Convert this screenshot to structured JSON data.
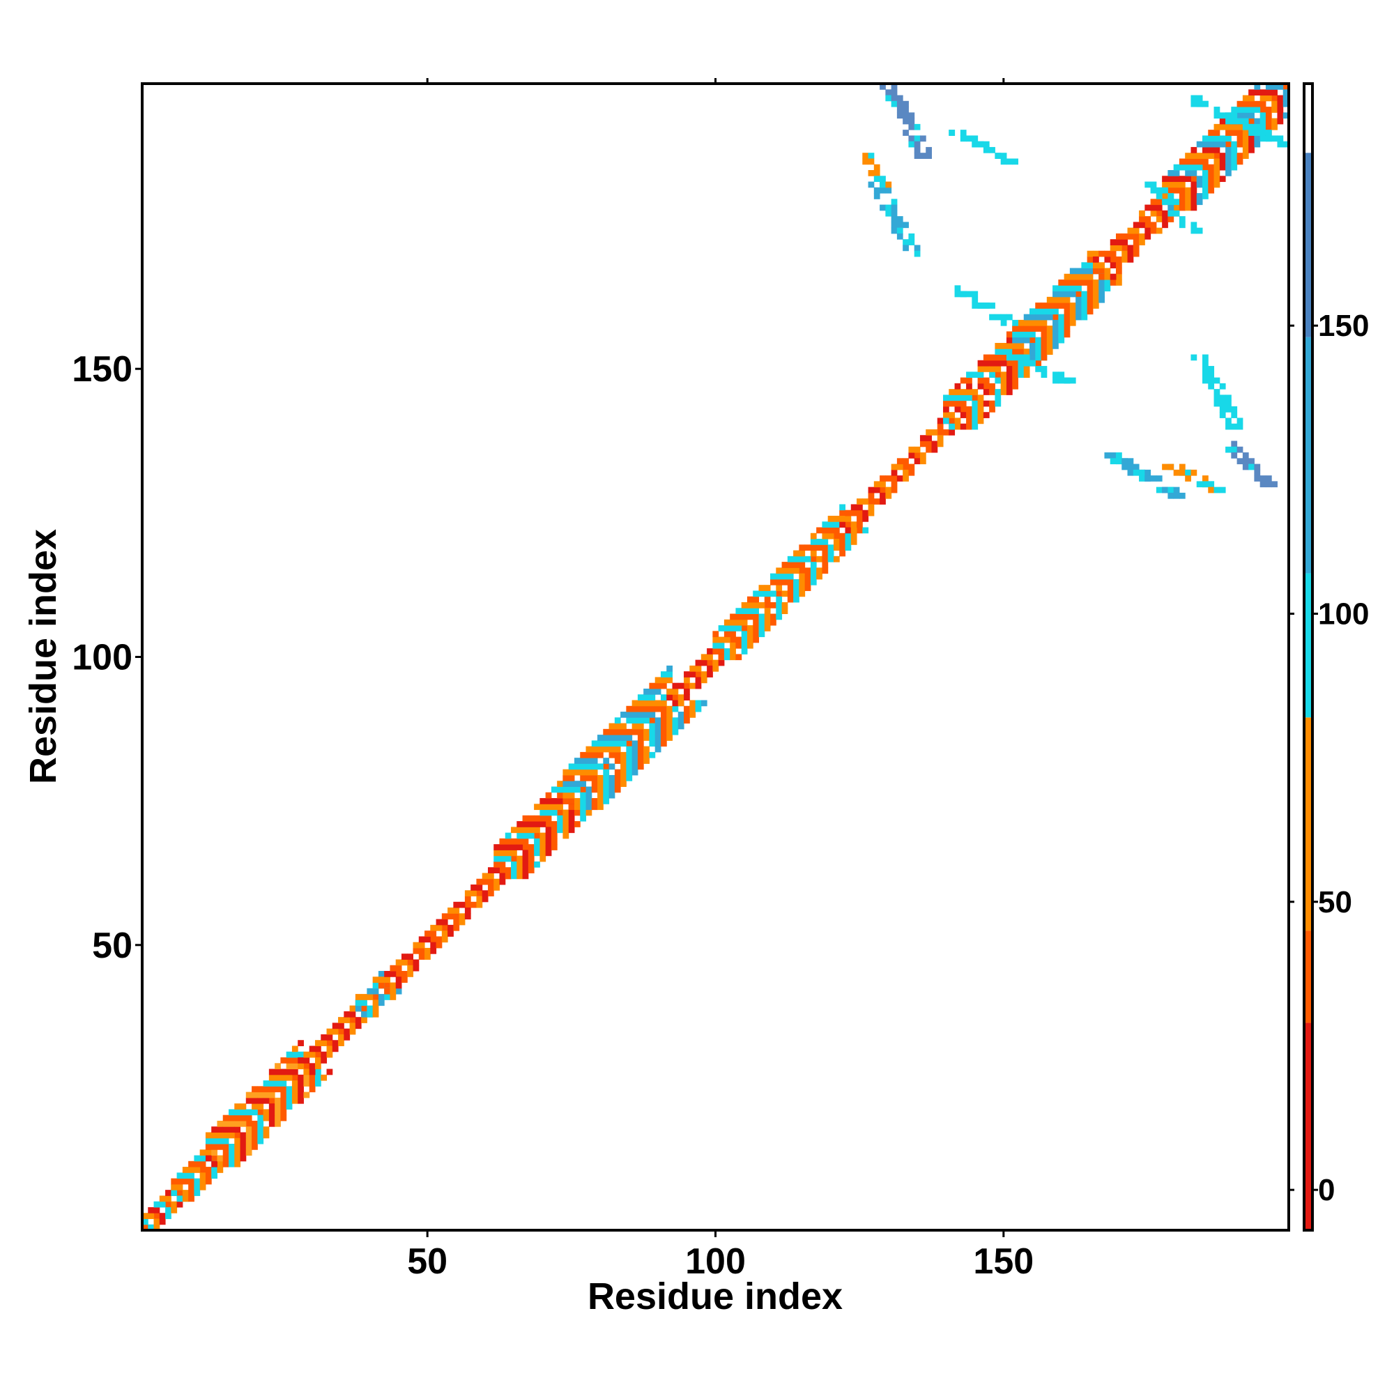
{
  "chart_data": {
    "type": "heatmap",
    "title": "",
    "xlabel": "Residue index",
    "ylabel": "Residue index",
    "xlim": [
      1,
      199
    ],
    "ylim": [
      1,
      199
    ],
    "x_ticks": [
      50,
      100,
      150
    ],
    "y_ticks": [
      50,
      100,
      150
    ],
    "grid": false,
    "symmetric": true,
    "colorbar": {
      "ticks": [
        0,
        50,
        100,
        150
      ],
      "range": [
        -7,
        192
      ],
      "bands": [
        {
          "from": -7,
          "to": 29,
          "color": "#e21a12"
        },
        {
          "from": 29,
          "to": 45,
          "color": "#ff5a00"
        },
        {
          "from": 45,
          "to": 82,
          "color": "#ff8c00"
        },
        {
          "from": 82,
          "to": 107,
          "color": "#18d8e8"
        },
        {
          "from": 107,
          "to": 148,
          "color": "#33a8d6"
        },
        {
          "from": 148,
          "to": 180,
          "color": "#4a82c0"
        },
        {
          "from": 180,
          "to": 192,
          "color": "#ffffff"
        }
      ]
    },
    "palette": {
      "red": "#e21a12",
      "orange_red": "#ff5a00",
      "orange": "#ff8c00",
      "light_orange": "#ffa020",
      "cyan": "#18d8e8",
      "light_blue": "#33a8d6",
      "steel_blue": "#5a88c2",
      "white": "#ffffff"
    },
    "diagonal_segments": [
      {
        "from": 1,
        "to": 6,
        "width": 2,
        "colors": [
          "orange",
          "red",
          "cyan"
        ]
      },
      {
        "from": 6,
        "to": 12,
        "width": 3,
        "colors": [
          "orange_red",
          "cyan",
          "orange"
        ]
      },
      {
        "from": 12,
        "to": 28,
        "width": 5,
        "colors": [
          "orange_red",
          "cyan",
          "orange",
          "red",
          "light_orange"
        ]
      },
      {
        "from": 28,
        "to": 38,
        "width": 2,
        "colors": [
          "red",
          "orange"
        ]
      },
      {
        "from": 38,
        "to": 42,
        "width": 3,
        "colors": [
          "light_blue",
          "cyan",
          "orange"
        ]
      },
      {
        "from": 42,
        "to": 62,
        "width": 2,
        "colors": [
          "red",
          "orange_red",
          "orange"
        ]
      },
      {
        "from": 62,
        "to": 74,
        "width": 5,
        "colors": [
          "orange_red",
          "cyan",
          "orange",
          "red"
        ]
      },
      {
        "from": 74,
        "to": 92,
        "width": 6,
        "colors": [
          "orange",
          "cyan",
          "light_blue",
          "orange_red"
        ]
      },
      {
        "from": 92,
        "to": 100,
        "width": 2,
        "colors": [
          "orange",
          "red"
        ]
      },
      {
        "from": 100,
        "to": 122,
        "width": 4,
        "colors": [
          "cyan",
          "orange",
          "orange_red"
        ]
      },
      {
        "from": 122,
        "to": 140,
        "width": 2,
        "colors": [
          "red",
          "orange",
          "orange_red"
        ]
      },
      {
        "from": 140,
        "to": 152,
        "width": 5,
        "colors": [
          "orange_red",
          "cyan",
          "orange",
          "red"
        ]
      },
      {
        "from": 152,
        "to": 166,
        "width": 5,
        "colors": [
          "cyan",
          "orange_red",
          "orange",
          "light_blue"
        ]
      },
      {
        "from": 166,
        "to": 178,
        "width": 3,
        "colors": [
          "orange",
          "red",
          "orange_red"
        ]
      },
      {
        "from": 178,
        "to": 199,
        "width": 5,
        "colors": [
          "cyan",
          "orange_red",
          "orange",
          "red",
          "light_blue"
        ]
      }
    ],
    "off_diagonal_patches": [
      {
        "x": [
          130,
          136
        ],
        "y": [
          187,
          199
        ],
        "color": "steel_blue"
      },
      {
        "x": [
          128,
          134
        ],
        "y": [
          170,
          182
        ],
        "color": "light_blue"
      },
      {
        "x": [
          127,
          129
        ],
        "y": [
          182,
          187
        ],
        "color": "orange"
      },
      {
        "x": [
          141,
          152
        ],
        "y": [
          186,
          191
        ],
        "color": "cyan"
      },
      {
        "x": [
          142,
          151
        ],
        "y": [
          158,
          164
        ],
        "color": "cyan"
      },
      {
        "x": [
          152,
          161
        ],
        "y": [
          148,
          152
        ],
        "color": "cyan"
      },
      {
        "x": [
          169,
          180
        ],
        "y": [
          128,
          135
        ],
        "color": "light_blue"
      },
      {
        "x": [
          189,
          197
        ],
        "y": [
          129,
          137
        ],
        "color": "steel_blue"
      },
      {
        "x": [
          179,
          187
        ],
        "y": [
          129,
          133
        ],
        "color": "orange"
      },
      {
        "x": [
          184,
          190
        ],
        "y": [
          140,
          152
        ],
        "color": "cyan"
      },
      {
        "x": [
          182,
          198
        ],
        "y": [
          189,
          197
        ],
        "color": "cyan"
      },
      {
        "x": [
          176,
          183
        ],
        "y": [
          174,
          182
        ],
        "color": "cyan"
      }
    ]
  }
}
